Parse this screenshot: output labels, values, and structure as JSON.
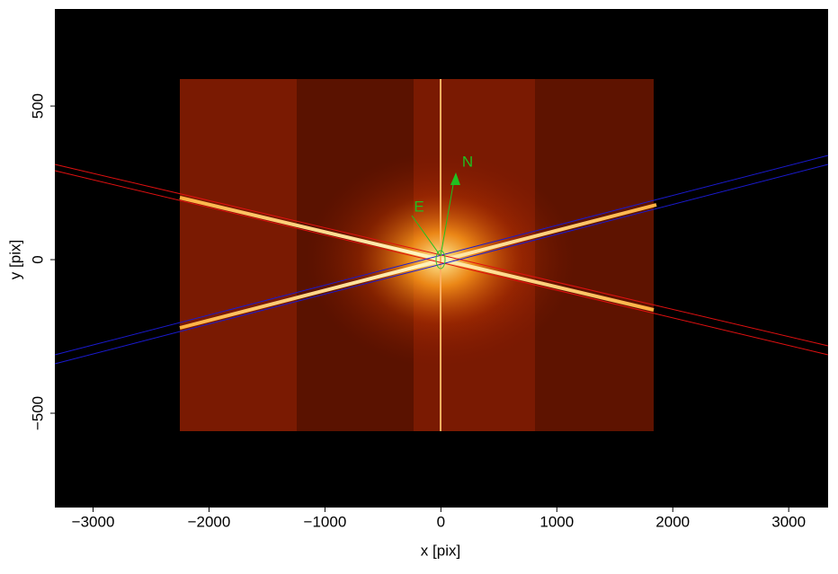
{
  "chart_data": {
    "type": "image",
    "x_label": "x [pix]",
    "y_label": "y [pix]",
    "annotations": [
      "N",
      "E"
    ],
    "xlim": [
      -3330,
      3340
    ],
    "ylim": [
      -807,
      816
    ],
    "xticks": [
      {
        "value": -3000,
        "label": "−3000"
      },
      {
        "value": -2000,
        "label": "−2000"
      },
      {
        "value": -1000,
        "label": "−1000"
      },
      0,
      1000,
      2000,
      3000
    ],
    "yticks": [
      {
        "value": -500,
        "label": "−500"
      },
      0,
      500
    ]
  }
}
